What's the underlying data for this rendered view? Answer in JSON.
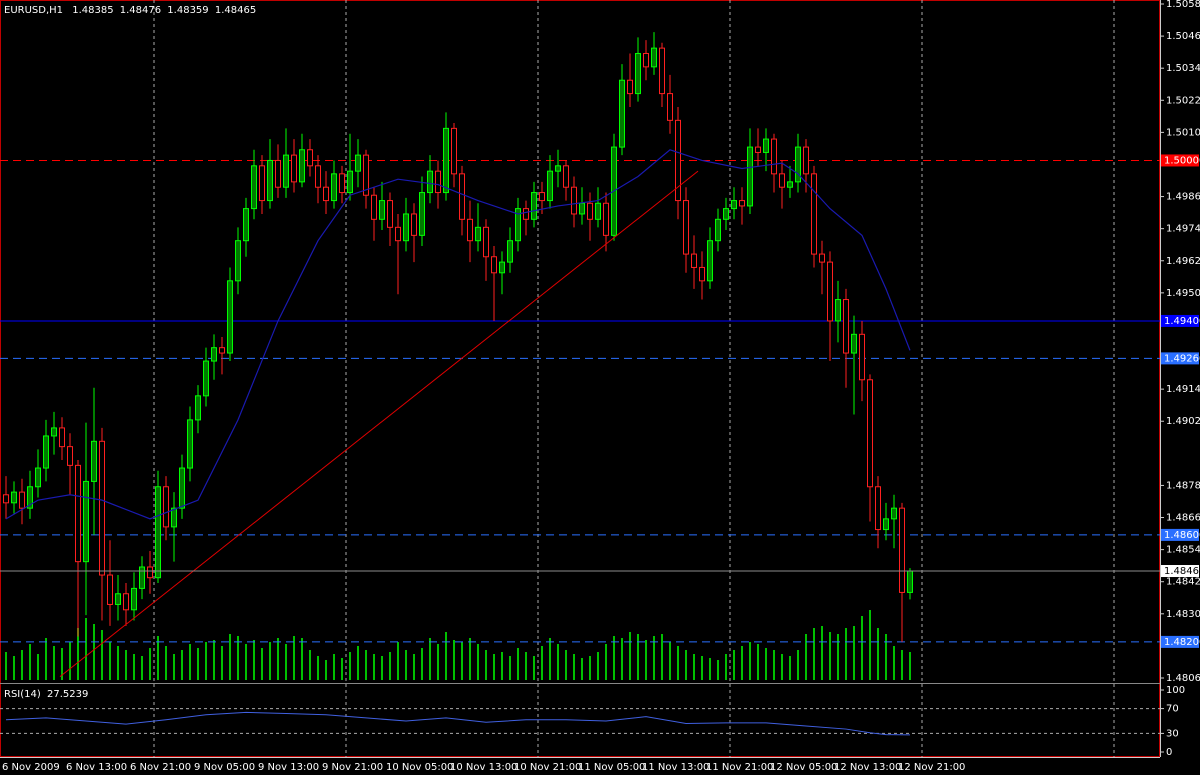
{
  "chart_data": {
    "type": "candlestick",
    "title": "EURUSD,H1",
    "categories": [
      "6 Nov 2009",
      null,
      null,
      null,
      null,
      null,
      null,
      null,
      "6 Nov 13:00",
      null,
      null,
      null,
      null,
      null,
      null,
      null,
      "6 Nov 21:00",
      null,
      null,
      null,
      null,
      null,
      null,
      null,
      "9 Nov 05:00",
      null,
      null,
      null,
      null,
      null,
      null,
      null,
      "9 Nov 13:00",
      null,
      null,
      null,
      null,
      null,
      null,
      null,
      "9 Nov 21:00",
      null,
      null,
      null,
      null,
      null,
      null,
      null,
      "10 Nov 05:00",
      null,
      null,
      null,
      null,
      null,
      null,
      null,
      "10 Nov 13:00",
      null,
      null,
      null,
      null,
      null,
      null,
      null,
      "10 Nov 21:00",
      null,
      null,
      null,
      null,
      null,
      null,
      null,
      "11 Nov 05:00",
      null,
      null,
      null,
      null,
      null,
      null,
      null,
      "11 Nov 13:00",
      null,
      null,
      null,
      null,
      null,
      null,
      null,
      "11 Nov 21:00",
      null,
      null,
      null,
      null,
      null,
      null,
      null,
      "12 Nov 05:00",
      null,
      null,
      null,
      null,
      null,
      null,
      null,
      "12 Nov 13:00",
      null,
      null,
      null,
      null,
      null,
      null,
      null,
      "12 Nov 21:00",
      null
    ],
    "ohlc": [
      [
        1.4875,
        1.4882,
        1.4866,
        1.4872
      ],
      [
        1.4872,
        1.488,
        1.4868,
        1.4876
      ],
      [
        1.4876,
        1.4881,
        1.4864,
        1.487
      ],
      [
        1.487,
        1.4884,
        1.4866,
        1.4878
      ],
      [
        1.4878,
        1.4892,
        1.4874,
        1.4885
      ],
      [
        1.4885,
        1.4903,
        1.488,
        1.4897
      ],
      [
        1.4897,
        1.4906,
        1.489,
        1.49
      ],
      [
        1.49,
        1.4904,
        1.4888,
        1.4893
      ],
      [
        1.4893,
        1.4898,
        1.4875,
        1.4886
      ],
      [
        1.4886,
        1.4888,
        1.4822,
        1.485
      ],
      [
        1.485,
        1.4902,
        1.483,
        1.488
      ],
      [
        1.488,
        1.4915,
        1.486,
        1.4895
      ],
      [
        1.4895,
        1.49,
        1.4828,
        1.4845
      ],
      [
        1.4845,
        1.4858,
        1.4826,
        1.4834
      ],
      [
        1.4834,
        1.4845,
        1.4828,
        1.4838
      ],
      [
        1.4838,
        1.4842,
        1.4826,
        1.4832
      ],
      [
        1.4832,
        1.4846,
        1.4828,
        1.484
      ],
      [
        1.484,
        1.4852,
        1.4836,
        1.4848
      ],
      [
        1.4848,
        1.4854,
        1.4838,
        1.4844
      ],
      [
        1.4844,
        1.4884,
        1.4842,
        1.4878
      ],
      [
        1.4878,
        1.4882,
        1.4858,
        1.4863
      ],
      [
        1.4863,
        1.4876,
        1.485,
        1.487
      ],
      [
        1.487,
        1.489,
        1.4866,
        1.4885
      ],
      [
        1.4885,
        1.4908,
        1.488,
        1.4903
      ],
      [
        1.4903,
        1.4916,
        1.4898,
        1.4912
      ],
      [
        1.4912,
        1.493,
        1.4908,
        1.4925
      ],
      [
        1.4925,
        1.4935,
        1.4918,
        1.493
      ],
      [
        1.493,
        1.4934,
        1.492,
        1.4928
      ],
      [
        1.4928,
        1.496,
        1.4925,
        1.4955
      ],
      [
        1.4955,
        1.4975,
        1.495,
        1.497
      ],
      [
        1.497,
        1.4986,
        1.4964,
        1.4982
      ],
      [
        1.4982,
        1.5004,
        1.4978,
        1.4998
      ],
      [
        1.4998,
        1.5002,
        1.498,
        1.4985
      ],
      [
        1.4985,
        1.5008,
        1.4982,
        1.5
      ],
      [
        1.5,
        1.5006,
        1.4986,
        1.499
      ],
      [
        1.499,
        1.5012,
        1.4986,
        1.5002
      ],
      [
        1.5002,
        1.5008,
        1.4988,
        1.4992
      ],
      [
        1.4992,
        1.501,
        1.499,
        1.5004
      ],
      [
        1.5004,
        1.5008,
        1.4994,
        1.4998
      ],
      [
        1.4998,
        1.5002,
        1.4984,
        1.499
      ],
      [
        1.499,
        1.4996,
        1.498,
        1.4985
      ],
      [
        1.4985,
        1.5,
        1.4982,
        1.4995
      ],
      [
        1.4995,
        1.4998,
        1.4984,
        1.4988
      ],
      [
        1.4988,
        1.501,
        1.4985,
        1.4996
      ],
      [
        1.4996,
        1.5008,
        1.499,
        1.5002
      ],
      [
        1.5002,
        1.5004,
        1.4982,
        1.4987
      ],
      [
        1.4987,
        1.499,
        1.497,
        1.4978
      ],
      [
        1.4978,
        1.4992,
        1.4974,
        1.4985
      ],
      [
        1.4985,
        1.4988,
        1.4968,
        1.4975
      ],
      [
        1.4975,
        1.498,
        1.495,
        1.497
      ],
      [
        1.497,
        1.4986,
        1.4966,
        1.498
      ],
      [
        1.498,
        1.4984,
        1.4962,
        1.4972
      ],
      [
        1.4972,
        1.4994,
        1.4968,
        1.4988
      ],
      [
        1.4988,
        1.5002,
        1.4984,
        1.4996
      ],
      [
        1.4996,
        1.5,
        1.4982,
        1.4988
      ],
      [
        1.4988,
        1.5018,
        1.4985,
        1.5012
      ],
      [
        1.5012,
        1.5014,
        1.499,
        1.4995
      ],
      [
        1.4995,
        1.4998,
        1.4972,
        1.4978
      ],
      [
        1.4978,
        1.4985,
        1.4962,
        1.497
      ],
      [
        1.497,
        1.4984,
        1.4966,
        1.4975
      ],
      [
        1.4975,
        1.4978,
        1.4955,
        1.4964
      ],
      [
        1.4964,
        1.4968,
        1.494,
        1.4958
      ],
      [
        1.4958,
        1.4966,
        1.495,
        1.4962
      ],
      [
        1.4962,
        1.4975,
        1.4958,
        1.497
      ],
      [
        1.497,
        1.4986,
        1.4966,
        1.4982
      ],
      [
        1.4982,
        1.4985,
        1.4972,
        1.4978
      ],
      [
        1.4978,
        1.4992,
        1.4975,
        1.4988
      ],
      [
        1.4988,
        1.4992,
        1.498,
        1.4985
      ],
      [
        1.4985,
        1.5002,
        1.4982,
        1.4996
      ],
      [
        1.4996,
        1.5004,
        1.499,
        1.4998
      ],
      [
        1.4998,
        1.5,
        1.4985,
        1.499
      ],
      [
        1.499,
        1.4994,
        1.4975,
        1.498
      ],
      [
        1.498,
        1.499,
        1.4976,
        1.4984
      ],
      [
        1.4984,
        1.4988,
        1.497,
        1.4978
      ],
      [
        1.4978,
        1.499,
        1.4975,
        1.4984
      ],
      [
        1.4984,
        1.4988,
        1.4966,
        1.4972
      ],
      [
        1.4972,
        1.501,
        1.497,
        1.5005
      ],
      [
        1.5005,
        1.5036,
        1.5002,
        1.503
      ],
      [
        1.503,
        1.504,
        1.502,
        1.5025
      ],
      [
        1.5025,
        1.5046,
        1.5022,
        1.504
      ],
      [
        1.504,
        1.5045,
        1.503,
        1.5035
      ],
      [
        1.5035,
        1.5048,
        1.5032,
        1.5042
      ],
      [
        1.5042,
        1.5044,
        1.502,
        1.5025
      ],
      [
        1.5025,
        1.5032,
        1.501,
        1.5015
      ],
      [
        1.5015,
        1.502,
        1.4978,
        1.4985
      ],
      [
        1.4985,
        1.499,
        1.4958,
        1.4965
      ],
      [
        1.4965,
        1.4972,
        1.4952,
        1.496
      ],
      [
        1.496,
        1.4966,
        1.4948,
        1.4955
      ],
      [
        1.4955,
        1.4975,
        1.4952,
        1.497
      ],
      [
        1.497,
        1.4982,
        1.4966,
        1.4978
      ],
      [
        1.4978,
        1.4986,
        1.4974,
        1.4982
      ],
      [
        1.4982,
        1.499,
        1.4978,
        1.4985
      ],
      [
        1.4985,
        1.499,
        1.4976,
        1.4983
      ],
      [
        1.4983,
        1.5012,
        1.498,
        1.5005
      ],
      [
        1.5005,
        1.5012,
        1.4998,
        1.5003
      ],
      [
        1.5003,
        1.5012,
        1.4996,
        1.5008
      ],
      [
        1.5008,
        1.501,
        1.4988,
        1.4995
      ],
      [
        1.4995,
        1.5,
        1.4982,
        1.499
      ],
      [
        1.499,
        1.4998,
        1.4986,
        1.4992
      ],
      [
        1.4992,
        1.501,
        1.4988,
        1.5005
      ],
      [
        1.5005,
        1.5008,
        1.4988,
        1.4995
      ],
      [
        1.4995,
        1.4998,
        1.496,
        1.4965
      ],
      [
        1.4965,
        1.497,
        1.495,
        1.4962
      ],
      [
        1.4962,
        1.4966,
        1.4925,
        1.494
      ],
      [
        1.494,
        1.4955,
        1.4932,
        1.4948
      ],
      [
        1.4948,
        1.4952,
        1.4915,
        1.4928
      ],
      [
        1.4928,
        1.4942,
        1.4905,
        1.4935
      ],
      [
        1.4935,
        1.494,
        1.491,
        1.4918
      ],
      [
        1.4918,
        1.492,
        1.4865,
        1.4878
      ],
      [
        1.4878,
        1.4882,
        1.4855,
        1.4862
      ],
      [
        1.4862,
        1.4872,
        1.4858,
        1.4866
      ],
      [
        1.4866,
        1.4875,
        1.4855,
        1.487
      ],
      [
        1.487,
        1.4872,
        1.482,
        1.48385
      ],
      [
        1.48385,
        1.48476,
        1.48359,
        1.48465
      ]
    ],
    "up_color": "#00ff00",
    "down_color": "#ff2020",
    "volume": {
      "color": "#00c000",
      "values": [
        1400,
        1200,
        1500,
        1800,
        1300,
        2100,
        1700,
        1600,
        1900,
        2600,
        3100,
        2800,
        2500,
        1900,
        1700,
        1500,
        1300,
        1200,
        1600,
        2200,
        1700,
        1300,
        1500,
        1800,
        1600,
        1900,
        2000,
        1700,
        2300,
        2200,
        1800,
        2000,
        1600,
        1900,
        2100,
        1800,
        2200,
        2100,
        1500,
        1200,
        1000,
        1300,
        1100,
        1400,
        1700,
        1500,
        1300,
        1200,
        1400,
        1900,
        1500,
        1300,
        1600,
        2100,
        1800,
        2400,
        2000,
        1900,
        2100,
        1800,
        1500,
        1300,
        1400,
        1200,
        1600,
        1400,
        1200,
        1700,
        2100,
        1800,
        1500,
        1300,
        1100,
        1200,
        1400,
        1800,
        2200,
        2100,
        2400,
        2300,
        2000,
        2200,
        2300,
        1900,
        1700,
        1500,
        1300,
        1200,
        1100,
        1000,
        1300,
        1500,
        1700,
        1900,
        1800,
        1600,
        1500,
        1300,
        1200,
        1500,
        2300,
        2600,
        2700,
        2400,
        2300,
        2600,
        2700,
        3200,
        3500,
        2600,
        2300,
        1700,
        1500,
        1400
      ]
    },
    "moving_average": {
      "color": "#1a1ab0",
      "x": [
        0,
        4,
        8,
        12,
        18,
        24,
        29,
        34,
        39,
        43,
        49,
        54,
        59,
        64,
        69,
        74,
        79,
        83,
        87,
        92,
        97,
        99,
        103,
        107,
        110,
        113
      ],
      "values": [
        1.4866,
        1.4873,
        1.4875,
        1.4873,
        1.4866,
        1.4873,
        1.4903,
        1.494,
        1.497,
        1.4987,
        1.4993,
        1.4991,
        1.4985,
        1.498,
        1.4983,
        1.4985,
        1.4994,
        1.5004,
        1.5,
        1.4997,
        1.4999,
        1.4995,
        1.4982,
        1.4972,
        1.4952,
        1.4929
      ]
    },
    "trendline": {
      "color": "#e00000",
      "x": [
        6.75,
        86.5
      ],
      "values": [
        1.4807,
        1.4996
      ]
    },
    "levels": [
      {
        "value": 1.5,
        "label": "1.50000",
        "color": "#ff0000",
        "style": "dashed"
      },
      {
        "value": 1.494,
        "label": "1.49400",
        "color": "#0000ff",
        "style": "solid"
      },
      {
        "value": 1.4926,
        "label": "1.49260",
        "color": "#2a6fff",
        "style": "dashed"
      },
      {
        "value": 1.486,
        "label": "1.48600",
        "color": "#2a6fff",
        "style": "dashed"
      },
      {
        "value": 1.482,
        "label": "1.48200",
        "color": "#2a6fff",
        "style": "dashed"
      }
    ],
    "ylim": [
      1.48065,
      1.50585
    ],
    "yticks": [
      1.48065,
      1.48305,
      1.48425,
      1.48545,
      1.48665,
      1.48785,
      1.49025,
      1.49145,
      1.49505,
      1.49625,
      1.49745,
      1.49865,
      1.50105,
      1.50225,
      1.50345,
      1.50465,
      1.50585
    ],
    "rsi": {
      "name": "RSI(14)",
      "color": "#4060e0",
      "x": [
        0,
        5,
        10,
        15,
        20,
        25,
        30,
        35,
        40,
        45,
        50,
        55,
        60,
        65,
        70,
        75,
        80,
        85,
        90,
        95,
        100,
        105,
        108,
        110,
        113
      ],
      "values": [
        52,
        55,
        50,
        45,
        52,
        60,
        64,
        62,
        60,
        55,
        50,
        55,
        48,
        52,
        52,
        50,
        57,
        46,
        47,
        47,
        42,
        37,
        31,
        28,
        27.5239
      ],
      "ylim": [
        0,
        100
      ],
      "yticks": [
        0,
        30,
        70,
        100
      ]
    }
  }
}
